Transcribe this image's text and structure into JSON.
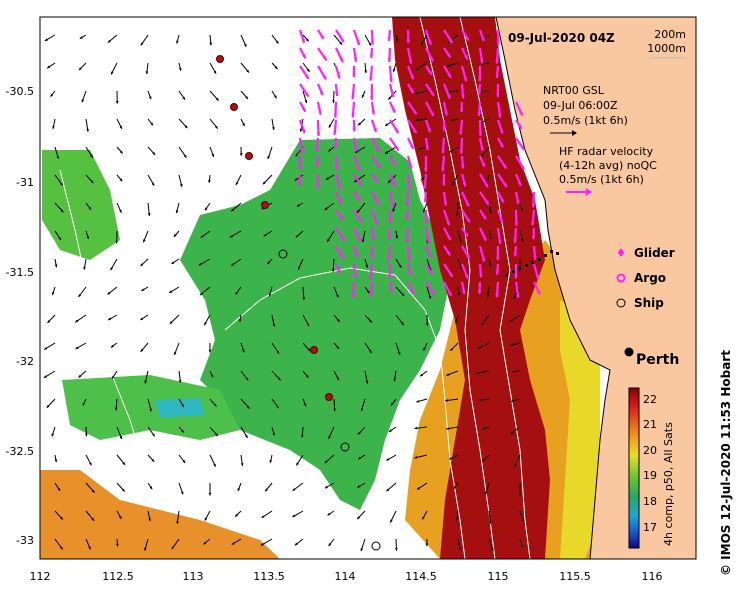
{
  "map": {
    "title": "09-Jul-2020 04Z",
    "contours": {
      "label_a": "200m",
      "label_b": "1000m"
    },
    "gsl_box": {
      "line1": "NRT00 GSL",
      "line2": "09-Jul 06:00Z",
      "line3": "0.5m/s (1kt 6h)"
    },
    "hf_box": {
      "line1": "HF radar velocity",
      "line2": "(4-12h avg) noQC",
      "line3": "0.5m/s (1kt 6h)"
    },
    "legend": {
      "glider": "Glider",
      "argo": "Argo",
      "ship": "Ship"
    },
    "place": "Perth",
    "colorbar": {
      "label": "4h comp, p50, All Sats",
      "ticks": [
        "22",
        "21",
        "20",
        "19",
        "18",
        "17"
      ]
    },
    "credit": "© IMOS 12-Jul-2020 11:53 Hobart",
    "x_ticks": [
      "112",
      "112.5",
      "113",
      "113.5",
      "114",
      "114.5",
      "115",
      "115.5",
      "116"
    ],
    "y_ticks": [
      "-30.5",
      "-31",
      "-31.5",
      "-32",
      "-32.5",
      "-33"
    ],
    "colors": {
      "land": "#f9c8a0",
      "warm": "#a50f0f",
      "cool": "#3cb44b",
      "hf_arrow": "#ff22ff"
    }
  }
}
